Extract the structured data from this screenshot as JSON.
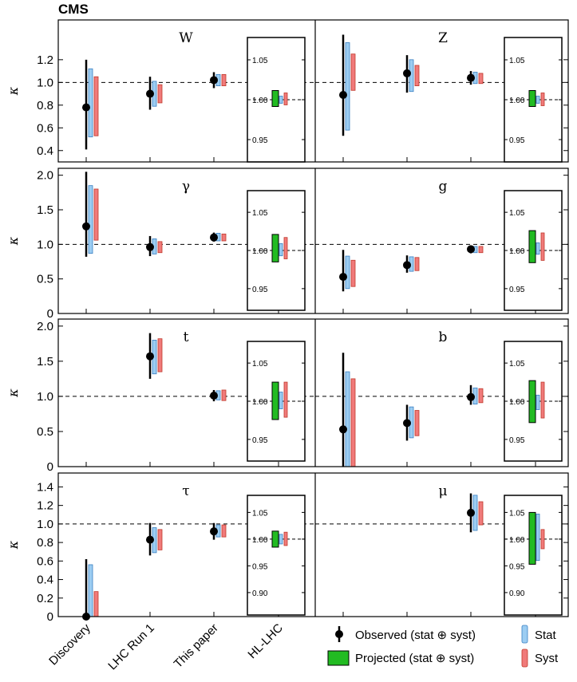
{
  "chart_data": {
    "type": "scatter",
    "experiment_label": "CMS",
    "categories": [
      "Discovery",
      "LHC Run 1",
      "This paper",
      "HL-LHC"
    ],
    "ylabel": "κ",
    "inset_ylim": [
      0.93,
      1.07
    ],
    "colors": {
      "observed": "#000000",
      "projected": "#22bb22",
      "stat": "#9ccdf2",
      "syst": "#f07a7a"
    },
    "legend": {
      "observed": "Observed (stat ⊕ syst)",
      "projected": "Projected (stat ⊕ syst)",
      "stat": "Stat",
      "syst": "Syst"
    },
    "rows": [
      {
        "ylim": [
          0.3,
          1.55
        ],
        "yticks": [
          "0.4",
          "0.6",
          "0.8",
          "1.0",
          "1.2"
        ],
        "inset_ticks": [
          "1.05",
          "1.00",
          "0.95"
        ],
        "panels": [
          {
            "label": "W",
            "points": [
              {
                "category": "Discovery",
                "value": 0.78,
                "total": [
                  0.41,
                  1.2
                ],
                "stat": [
                  0.52,
                  1.12
                ],
                "syst": [
                  0.53,
                  1.05
                ]
              },
              {
                "category": "LHC Run 1",
                "value": 0.9,
                "total": [
                  0.76,
                  1.05
                ],
                "stat": [
                  0.79,
                  1.01
                ],
                "syst": [
                  0.82,
                  0.98
                ]
              },
              {
                "category": "This paper",
                "value": 1.02,
                "total": [
                  0.95,
                  1.09
                ],
                "stat": [
                  0.97,
                  1.07
                ],
                "syst": [
                  0.97,
                  1.07
                ]
              }
            ],
            "projected": {
              "value": 1.0,
              "total": [
                0.9915,
                1.0115
              ],
              "stat": [
                0.9955,
                1.0045
              ],
              "syst": [
                0.9935,
                1.0085
              ]
            }
          },
          {
            "label": "Z",
            "points": [
              {
                "category": "Discovery",
                "value": 0.89,
                "total": [
                  0.53,
                  1.42
                ],
                "stat": [
                  0.58,
                  1.35
                ],
                "syst": [
                  0.93,
                  1.25
                ]
              },
              {
                "category": "LHC Run 1",
                "value": 1.08,
                "total": [
                  0.91,
                  1.24
                ],
                "stat": [
                  0.92,
                  1.2
                ],
                "syst": [
                  0.97,
                  1.15
                ]
              },
              {
                "category": "This paper",
                "value": 1.04,
                "total": [
                  0.98,
                  1.1
                ],
                "stat": [
                  0.99,
                  1.09
                ],
                "syst": [
                  0.99,
                  1.08
                ]
              }
            ],
            "projected": {
              "value": 1.0,
              "total": [
                0.9915,
                1.0115
              ],
              "stat": [
                0.9955,
                1.0045
              ],
              "syst": [
                0.9925,
                1.0085
              ]
            }
          }
        ]
      },
      {
        "ylim": [
          0,
          2.1
        ],
        "yticks": [
          "0",
          "0.5",
          "1.0",
          "1.5",
          "2.0"
        ],
        "inset_ticks": [
          "1.05",
          "1.00",
          "0.95"
        ],
        "panels": [
          {
            "label": "γ",
            "points": [
              {
                "category": "Discovery",
                "value": 1.26,
                "total": [
                  0.82,
                  2.05
                ],
                "stat": [
                  0.87,
                  1.85
                ],
                "syst": [
                  1.06,
                  1.8
                ]
              },
              {
                "category": "LHC Run 1",
                "value": 0.96,
                "total": [
                  0.83,
                  1.12
                ],
                "stat": [
                  0.86,
                  1.08
                ],
                "syst": [
                  0.88,
                  1.04
                ]
              },
              {
                "category": "This paper",
                "value": 1.1,
                "total": [
                  1.04,
                  1.17
                ],
                "stat": [
                  1.05,
                  1.16
                ],
                "syst": [
                  1.05,
                  1.15
                ]
              }
            ],
            "projected": {
              "value": 1.0,
              "total": [
                0.985,
                1.021
              ],
              "stat": [
                0.993,
                1.009
              ],
              "syst": [
                0.989,
                1.017
              ]
            }
          },
          {
            "label": "g",
            "points": [
              {
                "category": "Discovery",
                "value": 0.53,
                "total": [
                  0.32,
                  0.92
                ],
                "stat": [
                  0.36,
                  0.83
                ],
                "syst": [
                  0.39,
                  0.77
                ]
              },
              {
                "category": "LHC Run 1",
                "value": 0.7,
                "total": [
                  0.59,
                  0.84
                ],
                "stat": [
                  0.61,
                  0.82
                ],
                "syst": [
                  0.62,
                  0.81
                ]
              },
              {
                "category": "This paper",
                "value": 0.93,
                "total": [
                  0.87,
                  0.98
                ],
                "stat": [
                  0.88,
                  0.97
                ],
                "syst": [
                  0.88,
                  0.97
                ]
              }
            ],
            "projected": {
              "value": 1.0,
              "total": [
                0.984,
                1.026
              ],
              "stat": [
                0.995,
                1.01
              ],
              "syst": [
                0.987,
                1.023
              ]
            }
          }
        ]
      },
      {
        "ylim": [
          0,
          2.1
        ],
        "yticks": [
          "0",
          "0.5",
          "1.0",
          "1.5",
          "2.0"
        ],
        "inset_ticks": [
          "1.05",
          "1.00",
          "0.95"
        ],
        "panels": [
          {
            "label": "t",
            "points": [
              {
                "category": "LHC Run 1",
                "value": 1.57,
                "total": [
                  1.25,
                  1.9
                ],
                "stat": [
                  1.32,
                  1.8
                ],
                "syst": [
                  1.35,
                  1.82
                ]
              },
              {
                "category": "This paper",
                "value": 1.01,
                "total": [
                  0.93,
                  1.09
                ],
                "stat": [
                  0.95,
                  1.08
                ],
                "syst": [
                  0.94,
                  1.09
                ]
              }
            ],
            "projected": {
              "value": 1.0,
              "total": [
                0.976,
                1.025
              ],
              "stat": [
                0.99,
                1.012
              ],
              "syst": [
                0.979,
                1.025
              ]
            }
          },
          {
            "label": "b",
            "points": [
              {
                "category": "Discovery",
                "value": 0.53,
                "total": [
                  0,
                  1.62
                ],
                "stat": [
                  0,
                  1.35
                ],
                "syst": [
                  0,
                  1.25
                ]
              },
              {
                "category": "LHC Run 1",
                "value": 0.62,
                "total": [
                  0.37,
                  0.88
                ],
                "stat": [
                  0.41,
                  0.85
                ],
                "syst": [
                  0.44,
                  0.8
                ]
              },
              {
                "category": "This paper",
                "value": 0.99,
                "total": [
                  0.88,
                  1.16
                ],
                "stat": [
                  0.89,
                  1.12
                ],
                "syst": [
                  0.91,
                  1.11
                ]
              }
            ],
            "projected": {
              "value": 1.0,
              "total": [
                0.972,
                1.027
              ],
              "stat": [
                0.989,
                1.008
              ],
              "syst": [
                0.978,
                1.025
              ]
            }
          }
        ]
      },
      {
        "ylim": [
          0,
          1.55
        ],
        "yticks": [
          "0",
          "0.2",
          "0.4",
          "0.6",
          "0.8",
          "1.0",
          "1.2",
          "1.4"
        ],
        "inset_ticks": [
          "1.05",
          "1.00",
          "0.95",
          "0.90"
        ],
        "panels": [
          {
            "label": "τ",
            "points": [
              {
                "category": "Discovery",
                "value": 0.0,
                "total": [
                  0,
                  0.62
                ],
                "stat": [
                  0,
                  0.56
                ],
                "syst": [
                  0,
                  0.27
                ]
              },
              {
                "category": "LHC Run 1",
                "value": 0.83,
                "total": [
                  0.66,
                  1.01
                ],
                "stat": [
                  0.69,
                  0.96
                ],
                "syst": [
                  0.72,
                  0.94
                ]
              },
              {
                "category": "This paper",
                "value": 0.92,
                "total": [
                  0.83,
                  1.01
                ],
                "stat": [
                  0.86,
                  0.99
                ],
                "syst": [
                  0.86,
                  0.99
                ]
              }
            ],
            "projected": {
              "value": 1.0,
              "total": [
                0.985,
                1.015
              ],
              "stat": [
                0.991,
                1.009
              ],
              "syst": [
                0.988,
                1.013
              ]
            }
          },
          {
            "label": "μ",
            "points": [
              {
                "category": "This paper",
                "value": 1.12,
                "total": [
                  0.91,
                  1.33
                ],
                "stat": [
                  0.93,
                  1.31
                ],
                "syst": [
                  0.99,
                  1.24
                ]
              }
            ],
            "projected": {
              "value": 1.0,
              "total": [
                0.953,
                1.05
              ],
              "stat": [
                0.96,
                1.047
              ],
              "syst": [
                0.982,
                1.018
              ]
            }
          }
        ]
      }
    ]
  }
}
